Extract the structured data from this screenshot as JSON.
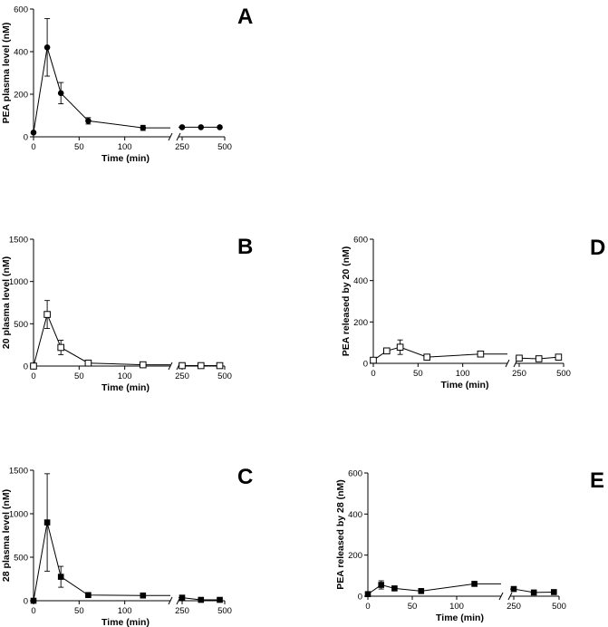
{
  "chart_data": [
    {
      "id": "A",
      "type": "line",
      "panel_label": "A",
      "xlabel": "Time (min)",
      "ylabel": "PEA plasma level (nM)",
      "ylim": [
        0,
        600
      ],
      "yticks": [
        0,
        200,
        400,
        600
      ],
      "xticks_left": [
        0,
        50,
        100
      ],
      "xticks_right": [
        250,
        500
      ],
      "marker": "filled-circle",
      "points": [
        {
          "x": 0,
          "y": 20,
          "err": 0
        },
        {
          "x": 15,
          "y": 420,
          "err": 135
        },
        {
          "x": 30,
          "y": 205,
          "err": 50
        },
        {
          "x": 60,
          "y": 75,
          "err": 15
        },
        {
          "x": 120,
          "y": 42,
          "err": 12
        },
        {
          "x": 240,
          "y": 45,
          "err": 0
        },
        {
          "x": 360,
          "y": 45,
          "err": 0
        },
        {
          "x": 480,
          "y": 45,
          "err": 0
        }
      ]
    },
    {
      "id": "B",
      "type": "line",
      "panel_label": "B",
      "xlabel": "Time (min)",
      "ylabel": "20 plasma level (nM)",
      "ylim": [
        0,
        1500
      ],
      "yticks": [
        0,
        500,
        1000,
        1500
      ],
      "xticks_left": [
        0,
        50,
        100
      ],
      "xticks_right": [
        250,
        500
      ],
      "marker": "open-square",
      "points": [
        {
          "x": 0,
          "y": 0,
          "err": 0
        },
        {
          "x": 15,
          "y": 610,
          "err": 165
        },
        {
          "x": 30,
          "y": 220,
          "err": 85
        },
        {
          "x": 60,
          "y": 35,
          "err": 0
        },
        {
          "x": 120,
          "y": 15,
          "err": 0
        },
        {
          "x": 240,
          "y": 5,
          "err": 0
        },
        {
          "x": 360,
          "y": 5,
          "err": 0
        },
        {
          "x": 480,
          "y": 5,
          "err": 0
        }
      ]
    },
    {
      "id": "C",
      "type": "line",
      "panel_label": "C",
      "xlabel": "Time (min)",
      "ylabel": "28 plasma level (nM)",
      "ylim": [
        0,
        1500
      ],
      "yticks": [
        0,
        500,
        1000,
        1500
      ],
      "xticks_left": [
        0,
        50,
        100
      ],
      "xticks_right": [
        250,
        500
      ],
      "marker": "filled-square",
      "points": [
        {
          "x": 0,
          "y": 0,
          "err": 0
        },
        {
          "x": 15,
          "y": 900,
          "err": 560
        },
        {
          "x": 30,
          "y": 275,
          "err": 120
        },
        {
          "x": 60,
          "y": 65,
          "err": 0
        },
        {
          "x": 120,
          "y": 60,
          "err": 0
        },
        {
          "x": 240,
          "y": 35,
          "err": 0
        },
        {
          "x": 360,
          "y": 10,
          "err": 0
        },
        {
          "x": 480,
          "y": 10,
          "err": 0
        }
      ]
    },
    {
      "id": "D",
      "type": "line",
      "panel_label": "D",
      "xlabel": "Time (min)",
      "ylabel": "PEA released by 20 (nM)",
      "ylim": [
        0,
        600
      ],
      "yticks": [
        0,
        200,
        400,
        600
      ],
      "xticks_left": [
        0,
        50,
        100
      ],
      "xticks_right": [
        250,
        500
      ],
      "marker": "open-square",
      "points": [
        {
          "x": 0,
          "y": 15,
          "err": 0
        },
        {
          "x": 15,
          "y": 60,
          "err": 0
        },
        {
          "x": 30,
          "y": 78,
          "err": 35
        },
        {
          "x": 60,
          "y": 30,
          "err": 0
        },
        {
          "x": 120,
          "y": 45,
          "err": 0
        },
        {
          "x": 240,
          "y": 25,
          "err": 0
        },
        {
          "x": 360,
          "y": 22,
          "err": 0
        },
        {
          "x": 480,
          "y": 30,
          "err": 0
        }
      ]
    },
    {
      "id": "E",
      "type": "line",
      "panel_label": "E",
      "xlabel": "Time (min)",
      "ylabel": "PEA released by 28 (nM)",
      "ylim": [
        0,
        600
      ],
      "yticks": [
        0,
        200,
        400,
        600
      ],
      "xticks_left": [
        0,
        50,
        100
      ],
      "xticks_right": [
        250,
        500
      ],
      "marker": "filled-square",
      "points": [
        {
          "x": 0,
          "y": 10,
          "err": 0
        },
        {
          "x": 15,
          "y": 55,
          "err": 20
        },
        {
          "x": 30,
          "y": 38,
          "err": 0
        },
        {
          "x": 60,
          "y": 25,
          "err": 0
        },
        {
          "x": 120,
          "y": 60,
          "err": 0
        },
        {
          "x": 240,
          "y": 35,
          "err": 0
        },
        {
          "x": 360,
          "y": 18,
          "err": 0
        },
        {
          "x": 480,
          "y": 20,
          "err": 0
        }
      ]
    }
  ]
}
